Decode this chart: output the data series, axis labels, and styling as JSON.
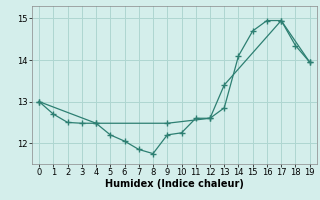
{
  "line1_x": [
    0,
    1,
    2,
    3,
    4,
    5,
    6,
    7,
    8,
    9,
    10,
    11,
    12,
    13,
    14,
    15,
    16,
    17,
    18,
    19
  ],
  "line1_y": [
    13.0,
    12.7,
    12.5,
    12.48,
    12.48,
    12.2,
    12.05,
    11.85,
    11.75,
    12.2,
    12.25,
    12.6,
    12.6,
    12.85,
    14.1,
    14.7,
    14.95,
    14.95,
    14.35,
    13.95
  ],
  "line2_x": [
    0,
    4,
    9,
    12,
    13,
    17,
    19
  ],
  "line2_y": [
    13.0,
    12.48,
    12.48,
    12.6,
    13.4,
    14.95,
    13.95
  ],
  "line_color": "#2d7f72",
  "bg_color": "#d4eeeb",
  "grid_color": "#aed6d1",
  "xlabel": "Humidex (Indice chaleur)",
  "ylim": [
    11.5,
    15.3
  ],
  "xlim": [
    -0.5,
    19.5
  ],
  "yticks": [
    12,
    13,
    14,
    15
  ],
  "xticks": [
    0,
    1,
    2,
    3,
    4,
    5,
    6,
    7,
    8,
    9,
    10,
    11,
    12,
    13,
    14,
    15,
    16,
    17,
    18,
    19
  ],
  "label_fontsize": 7,
  "tick_fontsize": 6
}
